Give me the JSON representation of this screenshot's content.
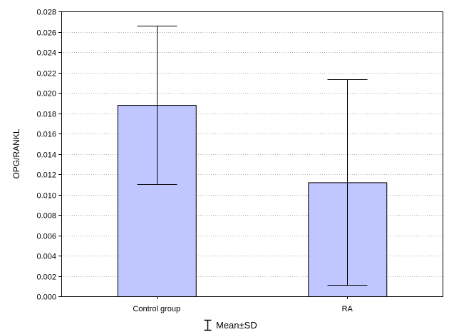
{
  "chart_data": {
    "type": "bar",
    "categories": [
      "Control group",
      "RA"
    ],
    "values": [
      0.0188,
      0.0112
    ],
    "error_low": [
      0.011,
      0.0011
    ],
    "error_high": [
      0.0266,
      0.0213
    ],
    "xlabel": "",
    "ylabel": "OPG/RANKL",
    "ylim": [
      0,
      0.028
    ],
    "yticks": [
      "0.000",
      "0.002",
      "0.004",
      "0.006",
      "0.008",
      "0.010",
      "0.012",
      "0.014",
      "0.016",
      "0.018",
      "0.020",
      "0.022",
      "0.024",
      "0.026",
      "0.028"
    ],
    "grid": true,
    "legend": {
      "position": "bottom",
      "label": "Mean±SD"
    },
    "colors": {
      "bar_fill": "#c0c6ff",
      "bar_stroke": "#000000",
      "grid": "#b0b0b0"
    }
  }
}
